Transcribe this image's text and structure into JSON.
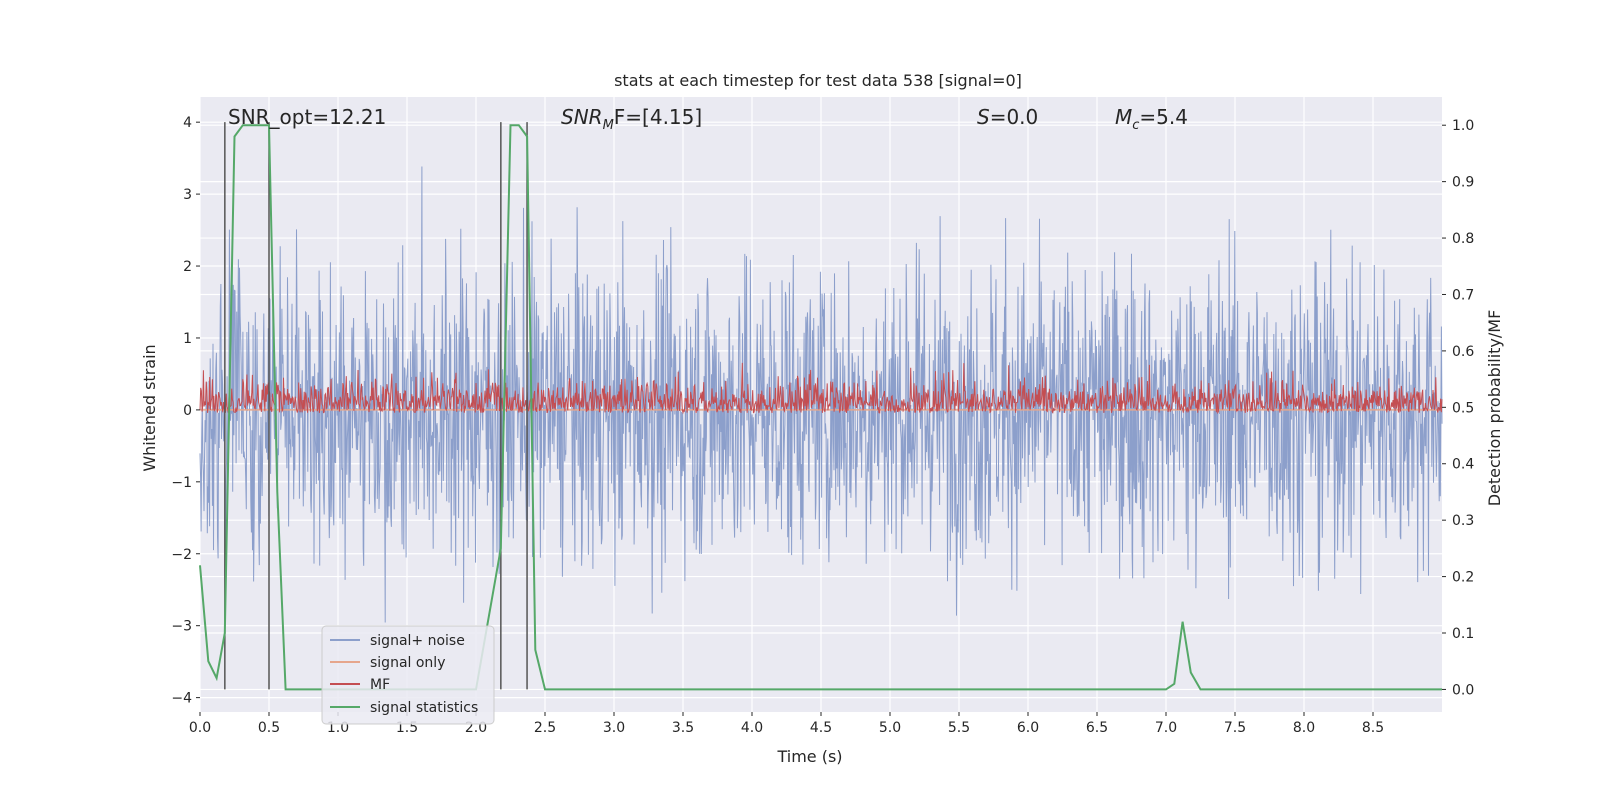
{
  "chart_data": {
    "type": "line",
    "title": "stats at each timestep for test data 538 [signal=0]",
    "xlabel": "Time (s)",
    "ylabel_left": "Whitened strain",
    "ylabel_right": "Detection probability/MF",
    "xlim": [
      0.0,
      9.0
    ],
    "ylim_left": [
      -4.2,
      4.35
    ],
    "ylim_right": [
      -0.04,
      1.05
    ],
    "x_ticks": [
      "0.0",
      "0.5",
      "1.0",
      "1.5",
      "2.0",
      "2.5",
      "3.0",
      "3.5",
      "4.0",
      "4.5",
      "5.0",
      "5.5",
      "6.0",
      "6.5",
      "7.0",
      "7.5",
      "8.0",
      "8.5"
    ],
    "y_ticks_left": [
      "4",
      "3",
      "2",
      "1",
      "0",
      "−1",
      "−2",
      "−3",
      "−4"
    ],
    "y_ticks_right": [
      "1.0",
      "0.9",
      "0.8",
      "0.7",
      "0.6",
      "0.5",
      "0.4",
      "0.3",
      "0.2",
      "0.1",
      "0.0"
    ],
    "grid": true,
    "legend_position": "lower-left",
    "background": "#eaeaf2",
    "annotations": {
      "snr_opt": "SNR_opt=12.21",
      "snr_mf_prefix": "SNR",
      "snr_mf_sub": "M",
      "snr_mf_suffix": "F=[4.15]",
      "s_label": "S",
      "s_value": "=0.0",
      "mc_label": "M",
      "mc_sub": "c",
      "mc_value": "=5.4"
    },
    "vertical_lines_x": [
      0.18,
      0.5,
      2.18,
      2.37
    ],
    "series": [
      {
        "name": "signal+ noise",
        "color": "#8c9fcb",
        "axis": "left",
        "kind": "noise",
        "approx_range": [
          -3.7,
          3.6
        ]
      },
      {
        "name": "signal only",
        "color": "#e6a68c",
        "axis": "left",
        "values_constant": 0.0
      },
      {
        "name": "MF",
        "color": "#c44e52",
        "axis": "right",
        "kind": "noise",
        "approx_range": [
          0.49,
          0.6
        ]
      },
      {
        "name": "signal statistics",
        "color": "#55a868",
        "axis": "right",
        "x": [
          0.0,
          0.06,
          0.12,
          0.18,
          0.25,
          0.31,
          0.37,
          0.43,
          0.5,
          0.56,
          0.62,
          0.68,
          0.75,
          1.0,
          1.5,
          2.0,
          2.18,
          2.25,
          2.31,
          2.37,
          2.43,
          2.5,
          3.0,
          4.0,
          5.0,
          6.0,
          7.0,
          7.06,
          7.12,
          7.18,
          7.25,
          7.5,
          8.0,
          9.0
        ],
        "values": [
          0.22,
          0.05,
          0.02,
          0.1,
          0.98,
          1.0,
          1.0,
          1.0,
          1.0,
          0.35,
          0.0,
          0.0,
          0.0,
          0.0,
          0.0,
          0.0,
          0.25,
          1.0,
          1.0,
          0.98,
          0.07,
          0.0,
          0.0,
          0.0,
          0.0,
          0.0,
          0.0,
          0.01,
          0.12,
          0.03,
          0.0,
          0.0,
          0.0,
          0.0
        ]
      }
    ]
  }
}
